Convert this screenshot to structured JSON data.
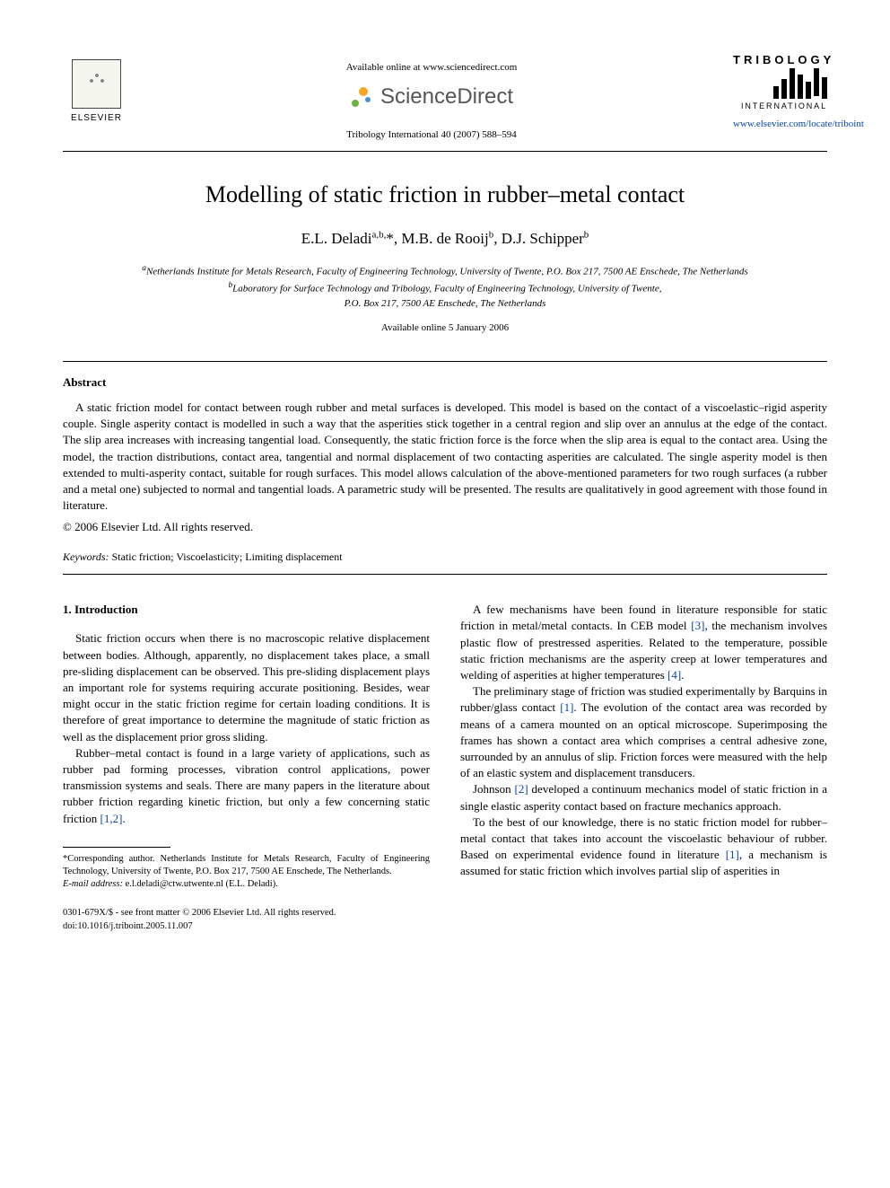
{
  "header": {
    "elsevier_label": "ELSEVIER",
    "available_online": "Available online at www.sciencedirect.com",
    "sciencedirect": "ScienceDirect",
    "journal_ref": "Tribology International 40 (2007) 588–594",
    "tribology_name": "TRIBOLOGY",
    "tribology_intl": "INTERNATIONAL",
    "journal_link": "www.elsevier.com/locate/triboint"
  },
  "title": "Modelling of static friction in rubber–metal contact",
  "authors_html": "E.L. Deladi<sup>a,b,</sup>*, M.B. de Rooij<sup>b</sup>, D.J. Schipper<sup>b</sup>",
  "affiliations": {
    "a": "Netherlands Institute for Metals Research, Faculty of Engineering Technology, University of Twente, P.O. Box 217, 7500 AE Enschede, The Netherlands",
    "b": "Laboratory for Surface Technology and Tribology, Faculty of Engineering Technology, University of Twente,",
    "b2": "P.O. Box 217, 7500 AE Enschede, The Netherlands"
  },
  "available_date": "Available online 5 January 2006",
  "abstract_heading": "Abstract",
  "abstract_body": "A static friction model for contact between rough rubber and metal surfaces is developed. This model is based on the contact of a viscoelastic–rigid asperity couple. Single asperity contact is modelled in such a way that the asperities stick together in a central region and slip over an annulus at the edge of the contact. The slip area increases with increasing tangential load. Consequently, the static friction force is the force when the slip area is equal to the contact area. Using the model, the traction distributions, contact area, tangential and normal displacement of two contacting asperities are calculated. The single asperity model is then extended to multi-asperity contact, suitable for rough surfaces. This model allows calculation of the above-mentioned parameters for two rough surfaces (a rubber and a metal one) subjected to normal and tangential loads. A parametric study will be presented. The results are qualitatively in good agreement with those found in literature.",
  "copyright": "© 2006 Elsevier Ltd. All rights reserved.",
  "keywords_label": "Keywords:",
  "keywords": " Static friction; Viscoelasticity; Limiting displacement",
  "section1_heading": "1. Introduction",
  "col_left": {
    "p1": "Static friction occurs when there is no macroscopic relative displacement between bodies. Although, apparently, no displacement takes place, a small pre-sliding displacement can be observed. This pre-sliding displacement plays an important role for systems requiring accurate positioning. Besides, wear might occur in the static friction regime for certain loading conditions. It is therefore of great importance to determine the magnitude of static friction as well as the displacement prior gross sliding.",
    "p2_a": "Rubber–metal contact is found in a large variety of applications, such as rubber pad forming processes, vibration control applications, power transmission systems and seals. There are many papers in the literature about rubber friction regarding kinetic friction, but only a few concerning static friction ",
    "p2_ref": "[1,2]",
    "p2_b": "."
  },
  "col_right": {
    "p1_a": "A few mechanisms have been found in literature responsible for static friction in metal/metal contacts. In CEB model ",
    "p1_ref1": "[3]",
    "p1_b": ", the mechanism involves plastic flow of prestressed asperities. Related to the temperature, possible static friction mechanisms are the asperity creep at lower temperatures and welding of asperities at higher temperatures ",
    "p1_ref2": "[4]",
    "p1_c": ".",
    "p2_a": "The preliminary stage of friction was studied experimentally by Barquins in rubber/glass contact ",
    "p2_ref": "[1]",
    "p2_b": ". The evolution of the contact area was recorded by means of a camera mounted on an optical microscope. Superimposing the frames has shown a contact area which comprises a central adhesive zone, surrounded by an annulus of slip. Friction forces were measured with the help of an elastic system and displacement transducers.",
    "p3_a": "Johnson ",
    "p3_ref": "[2]",
    "p3_b": " developed a continuum mechanics model of static friction in a single elastic asperity contact based on fracture mechanics approach.",
    "p4_a": "To the best of our knowledge, there is no static friction model for rubber–metal contact that takes into account the viscoelastic behaviour of rubber. Based on experimental evidence found in literature ",
    "p4_ref": "[1]",
    "p4_b": ", a mechanism is assumed for static friction which involves partial slip of asperities in"
  },
  "footnote": {
    "corr": "*Corresponding author. Netherlands Institute for Metals Research, Faculty of Engineering Technology, University of Twente, P.O. Box 217, 7500 AE Enschede, The Netherlands.",
    "email_label": "E-mail address:",
    "email": " e.l.deladi@ctw.utwente.nl (E.L. Deladi)."
  },
  "footer": {
    "line1": "0301-679X/$ - see front matter © 2006 Elsevier Ltd. All rights reserved.",
    "line2": "doi:10.1016/j.triboint.2005.11.007"
  },
  "colors": {
    "link": "#0645ad",
    "text": "#000000",
    "background": "#ffffff"
  }
}
